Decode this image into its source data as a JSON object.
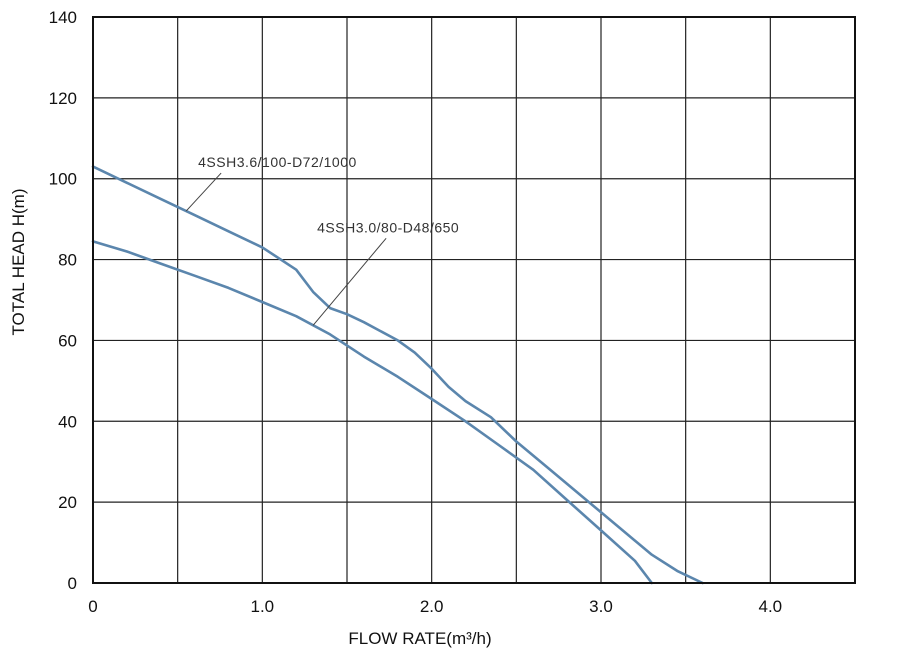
{
  "chart_data": {
    "type": "line",
    "title": "",
    "xlabel": "FLOW RATE(m³/h)",
    "ylabel": "TOTAL HEAD H(m)",
    "xlim": [
      0,
      4.5
    ],
    "ylim": [
      0,
      140
    ],
    "grid": true,
    "x_ticks": [
      0,
      0.5,
      1.0,
      1.5,
      2.0,
      2.5,
      3.0,
      3.5,
      4.0,
      4.5
    ],
    "x_tick_labels": [
      {
        "value": 0,
        "label": "0"
      },
      {
        "value": 1.0,
        "label": "1.0"
      },
      {
        "value": 2.0,
        "label": "2.0"
      },
      {
        "value": 3.0,
        "label": "3.0"
      },
      {
        "value": 4.0,
        "label": "4.0"
      }
    ],
    "y_ticks": [
      0,
      20,
      40,
      60,
      80,
      100,
      120,
      140
    ],
    "y_tick_labels": [
      "0",
      "20",
      "40",
      "60",
      "80",
      "100",
      "120",
      "140"
    ],
    "line_color": "#5b86ad",
    "series": [
      {
        "name": "4SSH3.6/100-D72/1000",
        "x": [
          0,
          0.2,
          0.4,
          0.6,
          0.8,
          1.0,
          1.2,
          1.3,
          1.4,
          1.5,
          1.6,
          1.8,
          1.9,
          2.0,
          2.1,
          2.2,
          2.35,
          2.5,
          2.7,
          2.9,
          3.1,
          3.3,
          3.45,
          3.6
        ],
        "y": [
          103,
          99,
          95,
          91,
          87,
          83,
          77.5,
          72,
          68,
          66.5,
          64.5,
          60,
          57,
          53,
          48.5,
          45,
          41,
          35,
          28,
          21,
          14,
          7,
          3,
          0
        ]
      },
      {
        "name": "4SSH3.0/80-D48/650",
        "x": [
          0,
          0.2,
          0.4,
          0.6,
          0.8,
          1.0,
          1.2,
          1.4,
          1.6,
          1.8,
          2.0,
          2.2,
          2.4,
          2.6,
          2.8,
          3.0,
          3.2,
          3.3
        ],
        "y": [
          84.5,
          82,
          79,
          76,
          73,
          69.5,
          66,
          61.5,
          56,
          51,
          45.5,
          40,
          34,
          28,
          20.5,
          13,
          5.5,
          0
        ]
      }
    ],
    "annotations": [
      {
        "text": "4SSH3.6/100-D72/1000",
        "series": 0,
        "anchor_x": 0.55
      },
      {
        "text": "4SSH3.0/80-D48/650",
        "series": 1,
        "anchor_x": 1.3
      }
    ]
  }
}
